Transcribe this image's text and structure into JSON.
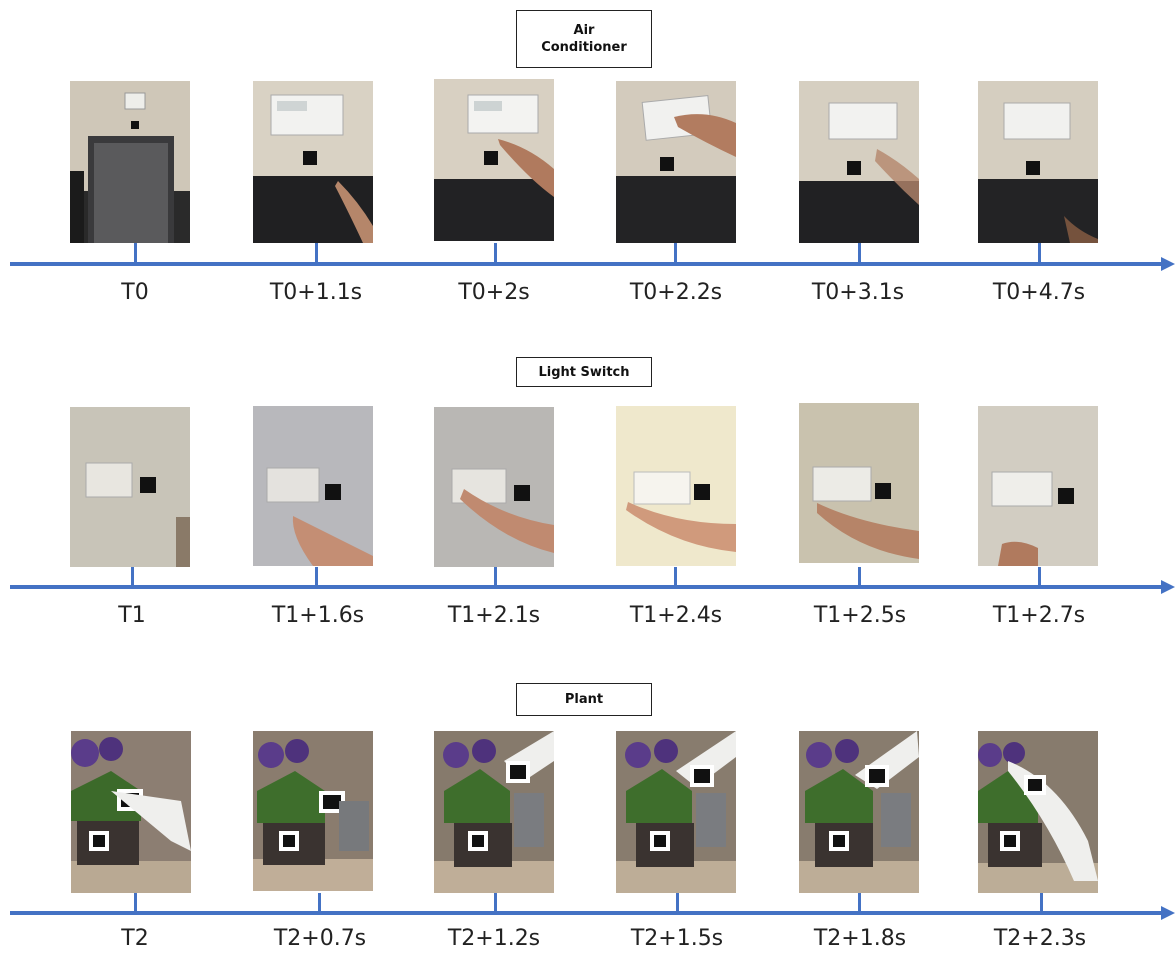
{
  "rows": [
    {
      "label": "Air\nConditioner",
      "times": [
        "T0",
        "T0+1.1s",
        "T0+2s",
        "T0+2.2s",
        "T0+3.1s",
        "T0+4.7s"
      ],
      "photo_description": "wall-mounted air conditioner control panel above a fiducial marker with a hand approaching"
    },
    {
      "label": "Light Switch",
      "times": [
        "T1",
        "T1+1.6s",
        "T1+2.1s",
        "T1+2.4s",
        "T1+2.5s",
        "T1+2.7s"
      ],
      "photo_description": "triple light switch plate next to a fiducial marker with an arm reaching toward it"
    },
    {
      "label": "Plant",
      "times": [
        "T2",
        "T2+0.7s",
        "T2+1.2s",
        "T2+1.5s",
        "T2+1.8s",
        "T2+2.3s"
      ],
      "photo_description": "potted purple tulips with fiducial markers and a watering can being moved"
    }
  ],
  "colors": {
    "axis": "#4472c4"
  }
}
